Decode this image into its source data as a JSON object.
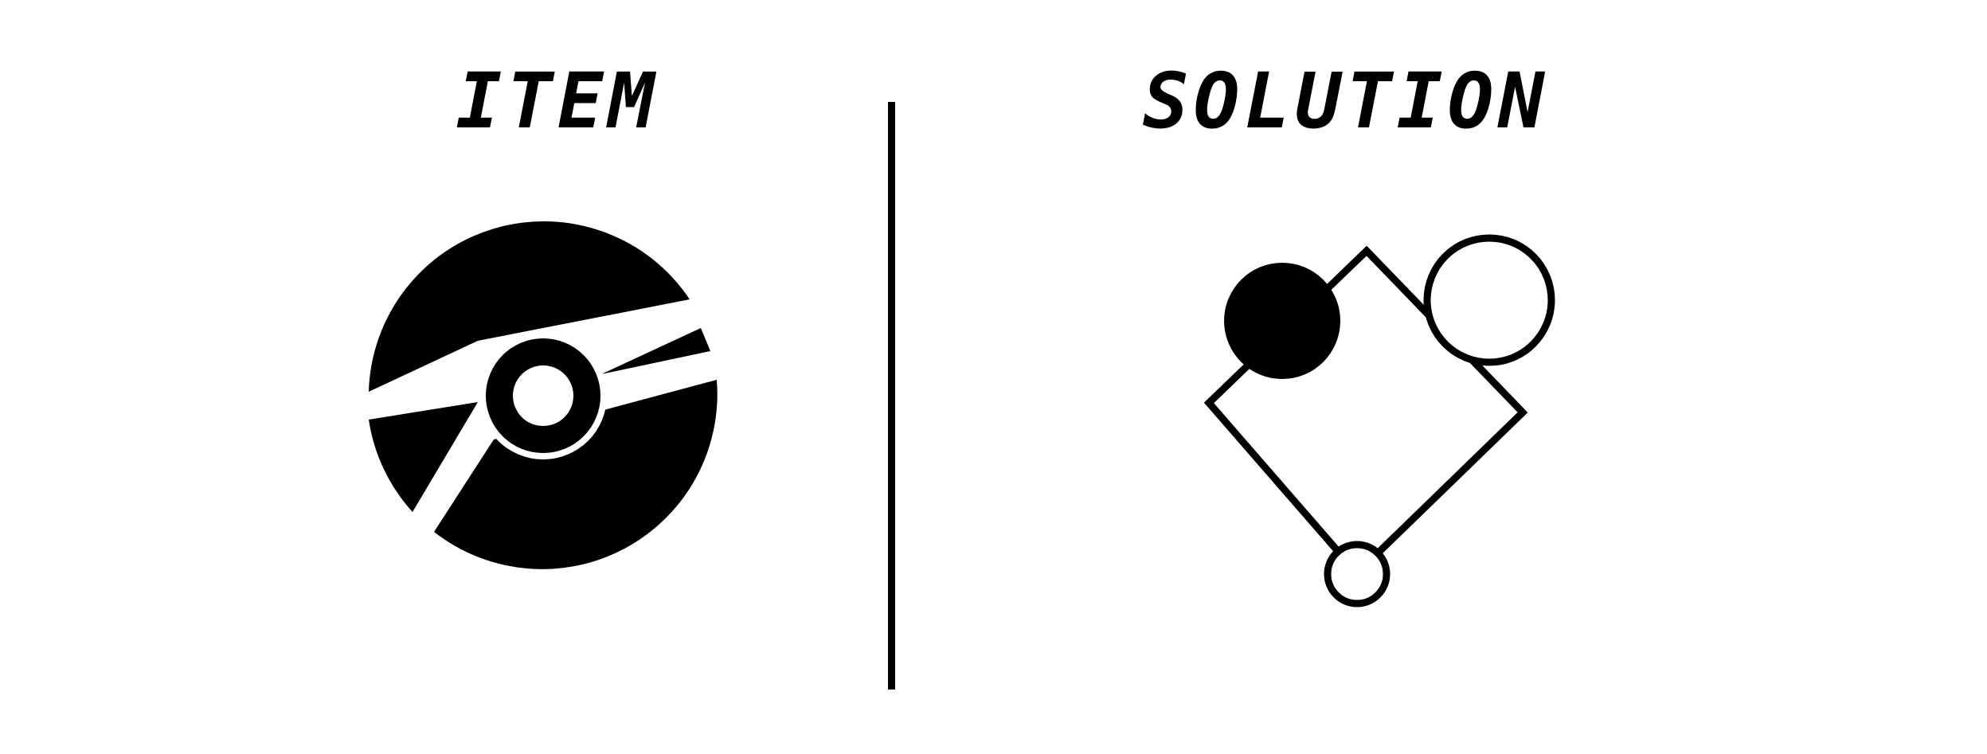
{
  "panels": {
    "item": {
      "title": "ITEM",
      "icon": "cd-disc-icon"
    },
    "solution": {
      "title": "SOLUTION",
      "icon": "diamond-with-circles-icon"
    }
  },
  "colors": {
    "ink": "#000000",
    "background": "#ffffff"
  }
}
